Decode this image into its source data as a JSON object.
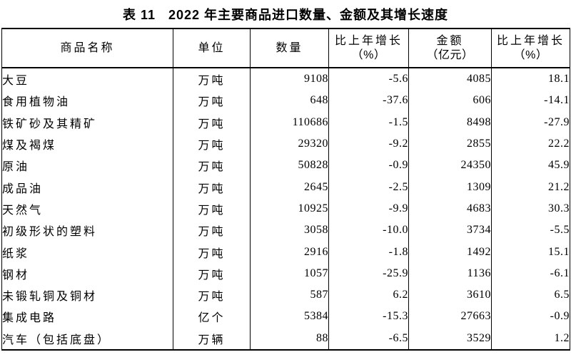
{
  "page": {
    "background": "#ffffff",
    "text_color": "#000000",
    "border_color": "#000000"
  },
  "title": {
    "index": "表 11",
    "text": "2022 年主要商品进口数量、金额及其增长速度"
  },
  "table": {
    "columns": [
      {
        "label": "商品名称"
      },
      {
        "label": "单位"
      },
      {
        "label": "数量"
      },
      {
        "label": "比上年增长",
        "sub": "（%）"
      },
      {
        "label": "金额",
        "sub": "（亿元）"
      },
      {
        "label": "比上年增长",
        "sub": "（%）"
      }
    ],
    "rows": [
      {
        "name": "大豆",
        "unit": "万吨",
        "quantity": "9108",
        "quantity_growth": "-5.6",
        "amount": "4085",
        "amount_growth": "18.1"
      },
      {
        "name": "食用植物油",
        "unit": "万吨",
        "quantity": "648",
        "quantity_growth": "-37.6",
        "amount": "606",
        "amount_growth": "-14.1"
      },
      {
        "name": "铁矿砂及其精矿",
        "unit": "万吨",
        "quantity": "110686",
        "quantity_growth": "-1.5",
        "amount": "8498",
        "amount_growth": "-27.9"
      },
      {
        "name": "煤及褐煤",
        "unit": "万吨",
        "quantity": "29320",
        "quantity_growth": "-9.2",
        "amount": "2855",
        "amount_growth": "22.2"
      },
      {
        "name": "原油",
        "unit": "万吨",
        "quantity": "50828",
        "quantity_growth": "-0.9",
        "amount": "24350",
        "amount_growth": "45.9"
      },
      {
        "name": "成品油",
        "unit": "万吨",
        "quantity": "2645",
        "quantity_growth": "-2.5",
        "amount": "1309",
        "amount_growth": "21.2"
      },
      {
        "name": "天然气",
        "unit": "万吨",
        "quantity": "10925",
        "quantity_growth": "-9.9",
        "amount": "4683",
        "amount_growth": "30.3"
      },
      {
        "name": "初级形状的塑料",
        "unit": "万吨",
        "quantity": "3058",
        "quantity_growth": "-10.0",
        "amount": "3734",
        "amount_growth": "-5.5"
      },
      {
        "name": "纸浆",
        "unit": "万吨",
        "quantity": "2916",
        "quantity_growth": "-1.8",
        "amount": "1492",
        "amount_growth": "15.1"
      },
      {
        "name": "钢材",
        "unit": "万吨",
        "quantity": "1057",
        "quantity_growth": "-25.9",
        "amount": "1136",
        "amount_growth": "-6.1"
      },
      {
        "name": "未锻轧铜及铜材",
        "unit": "万吨",
        "quantity": "587",
        "quantity_growth": "6.2",
        "amount": "3610",
        "amount_growth": "6.5"
      },
      {
        "name": "集成电路",
        "unit": "亿个",
        "quantity": "5384",
        "quantity_growth": "-15.3",
        "amount": "27663",
        "amount_growth": "-0.9"
      },
      {
        "name": "汽车（包括底盘）",
        "unit": "万辆",
        "quantity": "88",
        "quantity_growth": "-6.5",
        "amount": "3529",
        "amount_growth": "1.2"
      }
    ]
  }
}
